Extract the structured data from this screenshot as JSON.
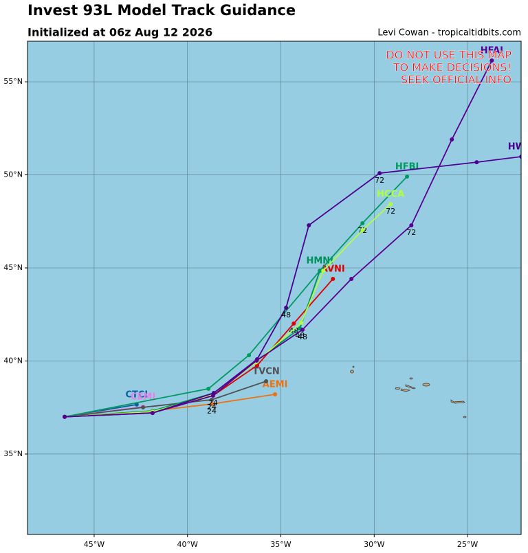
{
  "header": {
    "title": "Invest 93L Model Track Guidance",
    "subtitle": "Initialized at 06z Aug 12 2026",
    "credit": "Levi Cowan - tropicaltidbits.com"
  },
  "map": {
    "lonlim": [
      -48.57,
      -22.13
    ],
    "latlim": [
      30.68,
      57.18
    ],
    "lonticks": [
      {
        "value": -45,
        "label": "45°W"
      },
      {
        "value": -40,
        "label": "40°W"
      },
      {
        "value": -35,
        "label": "35°W"
      },
      {
        "value": -30,
        "label": "30°W"
      },
      {
        "value": -25,
        "label": "25°W"
      }
    ],
    "latticks": [
      {
        "value": 35,
        "label": "35°N"
      },
      {
        "value": 40,
        "label": "40°N"
      },
      {
        "value": 45,
        "label": "45°N"
      },
      {
        "value": 50,
        "label": "50°N"
      },
      {
        "value": 55,
        "label": "55°N"
      }
    ],
    "warning": [
      "DO NOT USE THIS MAP",
      "TO MAKE DECISIONS!",
      "SEEK OFFICIAL INFO"
    ],
    "tracks": [
      {
        "name": "CTCI",
        "color": "#0a5fa0",
        "points": [
          [
            -46.58,
            37.0
          ],
          [
            -42.72,
            37.66
          ]
        ],
        "hour_labels": [
          null,
          null
        ]
      },
      {
        "name": "CEMI",
        "color": "#e87ee8",
        "points": [
          [
            -46.58,
            37.0
          ],
          [
            -42.38,
            37.55
          ]
        ],
        "hour_labels": [
          null,
          null
        ]
      },
      {
        "name": "AEMI",
        "color": "#f07010",
        "points": [
          [
            -46.58,
            37.0
          ],
          [
            -41.87,
            37.32
          ],
          [
            -38.7,
            37.69
          ],
          [
            -35.31,
            38.21
          ]
        ],
        "hour_labels": [
          null,
          null,
          "24",
          null
        ]
      },
      {
        "name": "TVCN",
        "color": "#505050",
        "points": [
          [
            -46.58,
            37.0
          ],
          [
            -42.38,
            37.51
          ],
          [
            -38.7,
            37.92
          ],
          [
            -35.79,
            38.91
          ]
        ],
        "hour_labels": [
          null,
          null,
          "24",
          null
        ]
      },
      {
        "name": "AVNI",
        "color": "#e00000",
        "points": [
          [
            -46.58,
            37.0
          ],
          [
            -41.87,
            37.25
          ],
          [
            -38.63,
            38.14
          ],
          [
            -36.27,
            39.76
          ],
          [
            -34.31,
            42.01
          ],
          [
            -32.21,
            44.41
          ]
        ],
        "hour_labels": [
          null,
          null,
          "24",
          null,
          "48",
          null
        ]
      },
      {
        "name": "HMNI",
        "color": "#00905a",
        "points": [
          [
            -46.58,
            37.0
          ],
          [
            -41.87,
            37.32
          ],
          [
            -38.59,
            38.28
          ],
          [
            -36.3,
            40.02
          ],
          [
            -33.98,
            41.75
          ],
          [
            -32.91,
            44.85
          ]
        ],
        "hour_labels": [
          null,
          null,
          null,
          null,
          "48",
          null
        ]
      },
      {
        "name": "HFBI",
        "color": "#009a60",
        "points": [
          [
            -46.58,
            37.0
          ],
          [
            -38.88,
            38.51
          ],
          [
            -36.71,
            40.31
          ],
          [
            -32.91,
            44.85
          ],
          [
            -30.63,
            47.4
          ],
          [
            -28.24,
            49.91
          ]
        ],
        "hour_labels": [
          null,
          null,
          null,
          null,
          "72",
          null
        ]
      },
      {
        "name": "HCCA",
        "color": "#b0ff40",
        "points": [
          [
            -46.58,
            37.0
          ],
          [
            -41.87,
            37.28
          ],
          [
            -38.63,
            38.18
          ],
          [
            -36.34,
            39.92
          ],
          [
            -33.91,
            42.05
          ],
          [
            -32.73,
            44.85
          ],
          [
            -30.63,
            47.03
          ],
          [
            -29.12,
            48.43
          ]
        ],
        "hour_labels": [
          null,
          null,
          null,
          null,
          null,
          null,
          null,
          "72"
        ]
      },
      {
        "name": "HWFI",
        "color": "#4b0090",
        "points": [
          [
            -46.58,
            37.0
          ],
          [
            -41.87,
            37.21
          ],
          [
            -38.59,
            38.28
          ],
          [
            -36.27,
            40.09
          ],
          [
            -34.72,
            42.86
          ],
          [
            -33.5,
            47.29
          ],
          [
            -29.71,
            50.09
          ],
          [
            -24.51,
            50.68
          ],
          [
            -22.12,
            50.98
          ]
        ],
        "hour_labels": [
          null,
          null,
          null,
          null,
          "48",
          null,
          "72",
          null,
          null
        ]
      },
      {
        "name": "HFAI",
        "color": "#5a0090",
        "points": [
          [
            -46.58,
            37.0
          ],
          [
            -41.87,
            37.21
          ],
          [
            -38.63,
            38.14
          ],
          [
            -36.3,
            40.02
          ],
          [
            -33.84,
            41.68
          ],
          [
            -31.22,
            44.41
          ],
          [
            -28.01,
            47.29
          ],
          [
            -25.84,
            51.9
          ],
          [
            -23.7,
            56.14
          ]
        ],
        "hour_labels": [
          null,
          null,
          null,
          null,
          "48",
          null,
          "72",
          null,
          null
        ]
      }
    ]
  }
}
